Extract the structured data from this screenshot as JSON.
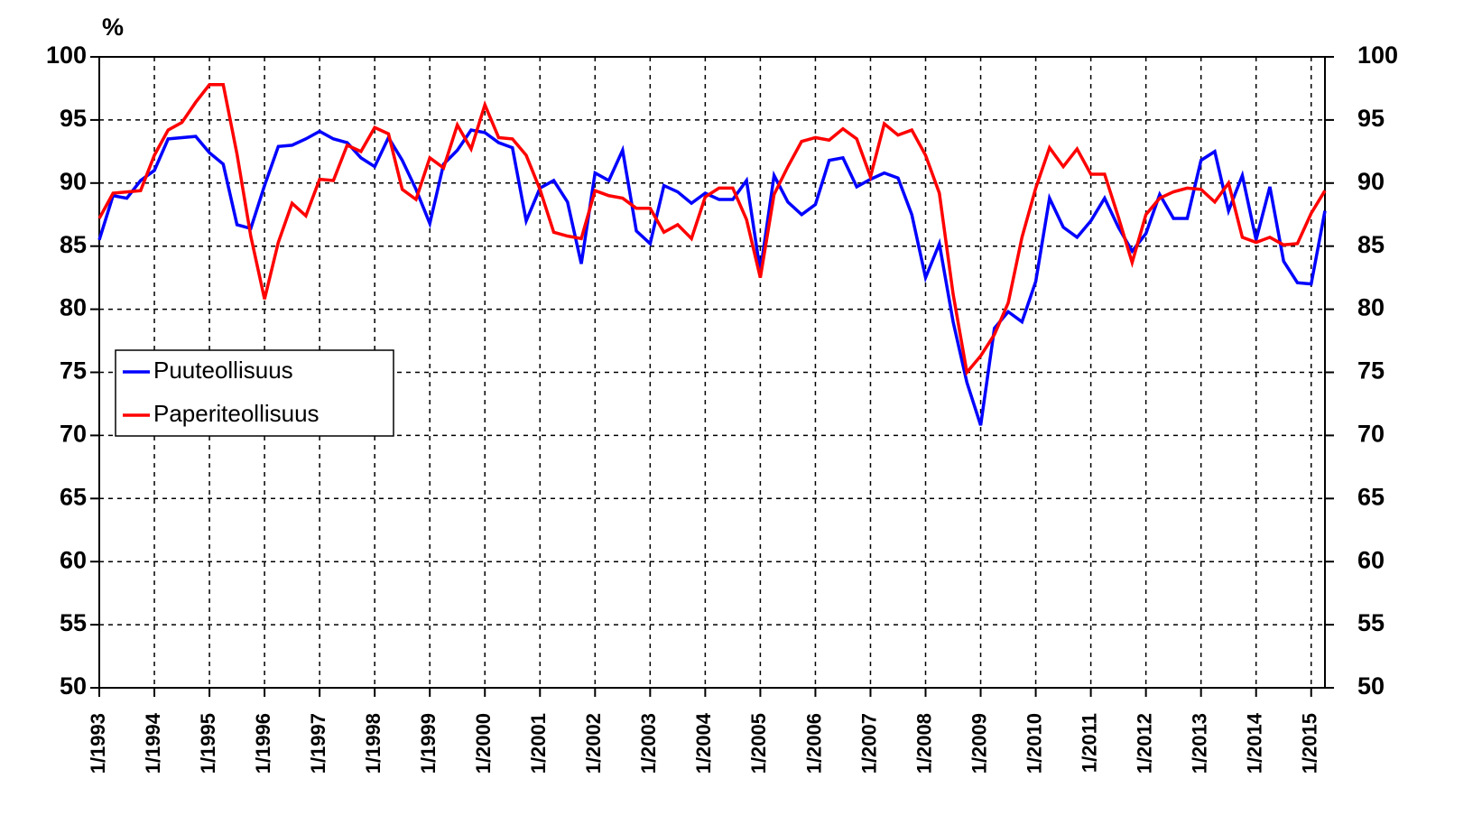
{
  "chart_data": {
    "type": "line",
    "title": "%",
    "x": [
      1993,
      1993.25,
      1993.5,
      1993.75,
      1994,
      1994.25,
      1994.5,
      1994.75,
      1995,
      1995.25,
      1995.5,
      1995.75,
      1996,
      1996.25,
      1996.5,
      1996.75,
      1997,
      1997.25,
      1997.5,
      1997.75,
      1998,
      1998.25,
      1998.5,
      1998.75,
      1999,
      1999.25,
      1999.5,
      1999.75,
      2000,
      2000.25,
      2000.5,
      2000.75,
      2001,
      2001.25,
      2001.5,
      2001.75,
      2002,
      2002.25,
      2002.5,
      2002.75,
      2003,
      2003.25,
      2003.5,
      2003.75,
      2004,
      2004.25,
      2004.5,
      2004.75,
      2005,
      2005.25,
      2005.5,
      2005.75,
      2006,
      2006.25,
      2006.5,
      2006.75,
      2007,
      2007.25,
      2007.5,
      2007.75,
      2008,
      2008.25,
      2008.5,
      2008.75,
      2009,
      2009.25,
      2009.5,
      2009.75,
      2010,
      2010.25,
      2010.5,
      2010.75,
      2011,
      2011.25,
      2011.5,
      2011.75,
      2012,
      2012.25,
      2012.5,
      2012.75,
      2013,
      2013.25,
      2013.5,
      2013.75,
      2014,
      2014.25,
      2014.5,
      2014.75,
      2015,
      2015.25
    ],
    "series": [
      {
        "name": "Puuteollisuus",
        "color": "#0000ff",
        "values": [
          85.5,
          89,
          88.8,
          90.2,
          91,
          93.5,
          93.6,
          93.7,
          92.4,
          91.5,
          86.7,
          86.4,
          89.8,
          92.9,
          93,
          93.5,
          94.1,
          93.5,
          93.2,
          92,
          91.3,
          93.6,
          91.8,
          89.5,
          86.8,
          91.5,
          92.6,
          94.2,
          94,
          93.2,
          92.8,
          87,
          89.6,
          90.2,
          88.5,
          83.6,
          90.8,
          90.2,
          92.6,
          86.2,
          85.2,
          89.8,
          89.3,
          88.4,
          89.2,
          88.7,
          88.7,
          90.2,
          83,
          90.6,
          88.5,
          87.5,
          88.3,
          91.8,
          92,
          89.7,
          90.3,
          90.8,
          90.4,
          87.5,
          82.5,
          85.2,
          79,
          74.2,
          70.8,
          78.5,
          79.8,
          79,
          82.2,
          88.8,
          86.5,
          85.7,
          87,
          88.8,
          86.5,
          84.6,
          86,
          89.1,
          87.2,
          87.2,
          91.8,
          92.5,
          87.8,
          90.6,
          85.5,
          89.7,
          83.8,
          82.1,
          82,
          87.8
        ]
      },
      {
        "name": "Paperiteollisuus",
        "color": "#ff0000",
        "values": [
          87.2,
          89.2,
          89.3,
          89.4,
          92.2,
          94.2,
          94.8,
          96.4,
          97.8,
          97.8,
          92.3,
          85.8,
          80.8,
          85.3,
          88.4,
          87.4,
          90.3,
          90.2,
          93,
          92.5,
          94.4,
          93.9,
          89.5,
          88.7,
          92,
          91.2,
          94.6,
          92.7,
          96.2,
          93.6,
          93.5,
          92.2,
          89.5,
          86.1,
          85.8,
          85.6,
          89.4,
          89,
          88.8,
          88,
          88,
          86.1,
          86.7,
          85.6,
          88.9,
          89.6,
          89.6,
          87.1,
          82.5,
          89.1,
          91.3,
          93.3,
          93.6,
          93.4,
          94.3,
          93.5,
          90.5,
          94.7,
          93.8,
          94.2,
          92.2,
          89.2,
          81.2,
          75,
          76.3,
          78,
          80.5,
          85.7,
          89.6,
          92.8,
          91.3,
          92.7,
          90.7,
          90.7,
          87.3,
          83.7,
          87.5,
          88.8,
          89.3,
          89.6,
          89.5,
          88.5,
          90,
          85.7,
          85.3,
          85.7,
          85.1,
          85.2,
          87.6,
          89.4
        ]
      }
    ],
    "xlim": [
      1993,
      2015.25
    ],
    "xticks": [
      {
        "value": 1993,
        "label": "1/1993"
      },
      {
        "value": 1994,
        "label": "1/1994"
      },
      {
        "value": 1995,
        "label": "1/1995"
      },
      {
        "value": 1996,
        "label": "1/1996"
      },
      {
        "value": 1997,
        "label": "1/1997"
      },
      {
        "value": 1998,
        "label": "1/1998"
      },
      {
        "value": 1999,
        "label": "1/1999"
      },
      {
        "value": 2000,
        "label": "1/2000"
      },
      {
        "value": 2001,
        "label": "1/2001"
      },
      {
        "value": 2002,
        "label": "1/2002"
      },
      {
        "value": 2003,
        "label": "1/2003"
      },
      {
        "value": 2004,
        "label": "1/2004"
      },
      {
        "value": 2005,
        "label": "1/2005"
      },
      {
        "value": 2006,
        "label": "1/2006"
      },
      {
        "value": 2007,
        "label": "1/2007"
      },
      {
        "value": 2008,
        "label": "1/2008"
      },
      {
        "value": 2009,
        "label": "1/2009"
      },
      {
        "value": 2010,
        "label": "1/2010"
      },
      {
        "value": 2011,
        "label": "1/2011"
      },
      {
        "value": 2012,
        "label": "1/2012"
      },
      {
        "value": 2013,
        "label": "1/2013"
      },
      {
        "value": 2014,
        "label": "1/2014"
      },
      {
        "value": 2015,
        "label": "1/2015"
      }
    ],
    "ylim": [
      50,
      100
    ],
    "yticks": [
      50,
      55,
      60,
      65,
      70,
      75,
      80,
      85,
      90,
      95,
      100
    ],
    "y2lim": [
      50,
      100
    ],
    "y2ticks": [
      50,
      55,
      60,
      65,
      70,
      75,
      80,
      85,
      90,
      95,
      100
    ],
    "grid": true,
    "legend": "left"
  }
}
